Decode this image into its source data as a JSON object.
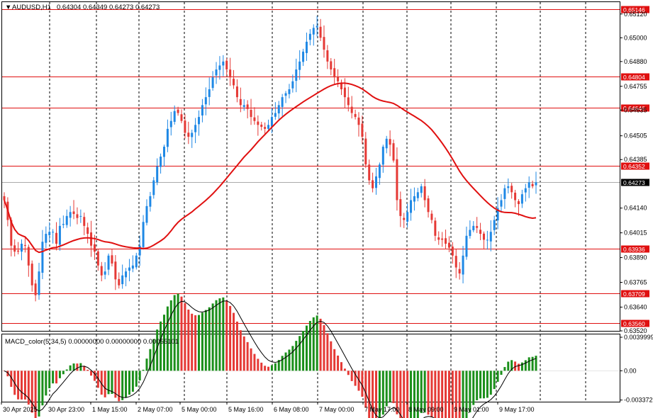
{
  "header": {
    "symbol": "AUDUSD,H1",
    "ohlc": "0.64304 0.64349 0.64273 0.64273"
  },
  "macd_header": "MACD_color(5,34,5) 0.00000000 0.00000000 0.00055101",
  "colors": {
    "bull": "#1e88e5",
    "bear": "#e53935",
    "ma": "#e01010",
    "hline": "#e01010",
    "grid": "#000000",
    "hist_up": "#1a8f1a",
    "hist_down": "#e53935",
    "signal": "#000000",
    "label_bg": "#e01010",
    "price_bg": "#000000"
  },
  "price_axis": {
    "ticks": [
      "0.65120",
      "0.65000",
      "0.64880",
      "0.64755",
      "0.64635",
      "0.64505",
      "0.64385",
      "0.64140",
      "0.64015",
      "0.63890",
      "0.63765",
      "0.63640",
      "0.63520"
    ]
  },
  "macd_axis": {
    "ticks": [
      "0.0039999",
      "0.00",
      "-0.0033722"
    ]
  },
  "level_lines": [
    0.65146,
    0.64804,
    0.64646,
    0.64352,
    0.63936,
    0.63709,
    0.6356
  ],
  "level_labels": [
    "0.65146",
    "0.64804",
    "0.64646",
    "0.64352",
    "0.63936",
    "0.63709",
    "0.63560"
  ],
  "current_price": 0.64273,
  "current_price_label": "0.64273",
  "time_axis": {
    "labels": [
      "30 Apr 2025",
      "30 Apr 23:00",
      "1 May 15:00",
      "2 May 07:00",
      "5 May 00:00",
      "5 May 16:00",
      "6 May 08:00",
      "7 May 00:00",
      "7 May 17:00",
      "8 May 09:00",
      "9 May 01:00",
      "9 May 17:00"
    ]
  },
  "chart_data": {
    "type": "candlestick",
    "symbol": "AUDUSD",
    "timeframe": "H1",
    "price_range": [
      0.6352,
      0.6518
    ],
    "closes": [
      0.6418,
      0.6408,
      0.6395,
      0.6392,
      0.6392,
      0.6396,
      0.6395,
      0.6385,
      0.6375,
      0.637,
      0.6382,
      0.6397,
      0.6401,
      0.6402,
      0.6402,
      0.6396,
      0.6405,
      0.6406,
      0.641,
      0.6412,
      0.6411,
      0.6409,
      0.641,
      0.6405,
      0.6401,
      0.6395,
      0.6392,
      0.6385,
      0.638,
      0.6382,
      0.639,
      0.6386,
      0.6378,
      0.6375,
      0.638,
      0.6382,
      0.6384,
      0.6385,
      0.639,
      0.6395,
      0.6407,
      0.6415,
      0.642,
      0.6428,
      0.6435,
      0.644,
      0.6445,
      0.6454,
      0.6458,
      0.6463,
      0.6462,
      0.6458,
      0.6452,
      0.645,
      0.6452,
      0.6456,
      0.646,
      0.6466,
      0.647,
      0.6474,
      0.648,
      0.6484,
      0.6486,
      0.6488,
      0.6484,
      0.648,
      0.6476,
      0.647,
      0.6466,
      0.6466,
      0.6464,
      0.646,
      0.6458,
      0.6456,
      0.6455,
      0.6454,
      0.6456,
      0.646,
      0.6462,
      0.6466,
      0.647,
      0.6472,
      0.6474,
      0.6478,
      0.6484,
      0.6488,
      0.6493,
      0.6498,
      0.6502,
      0.6505,
      0.6506,
      0.65,
      0.6494,
      0.6488,
      0.6484,
      0.648,
      0.6478,
      0.6474,
      0.647,
      0.6466,
      0.6462,
      0.646,
      0.6456,
      0.645,
      0.6436,
      0.6428,
      0.6424,
      0.643,
      0.6436,
      0.6445,
      0.6449,
      0.6446,
      0.6438,
      0.6418,
      0.641,
      0.6408,
      0.6412,
      0.6418,
      0.642,
      0.6422,
      0.6425,
      0.6418,
      0.6412,
      0.6408,
      0.64,
      0.6398,
      0.6398,
      0.6396,
      0.6394,
      0.639,
      0.6384,
      0.6381,
      0.639,
      0.64,
      0.6403,
      0.6405,
      0.6404,
      0.6401,
      0.6398,
      0.6398,
      0.6402,
      0.6408,
      0.6414,
      0.6418,
      0.6424,
      0.6425,
      0.6422,
      0.6418,
      0.6416,
      0.6421,
      0.6424,
      0.6427,
      0.6425,
      0.6427
    ],
    "moving_average_on_chart": true,
    "indicator": {
      "name": "MACD_color(5,34,5)",
      "main": 0.0,
      "signal": 0.0,
      "histogram": 0.00055101
    },
    "horizontal_levels": [
      0.65146,
      0.64804,
      0.64646,
      0.64352,
      0.63936,
      0.63709,
      0.6356
    ],
    "current_price": 0.64273
  }
}
